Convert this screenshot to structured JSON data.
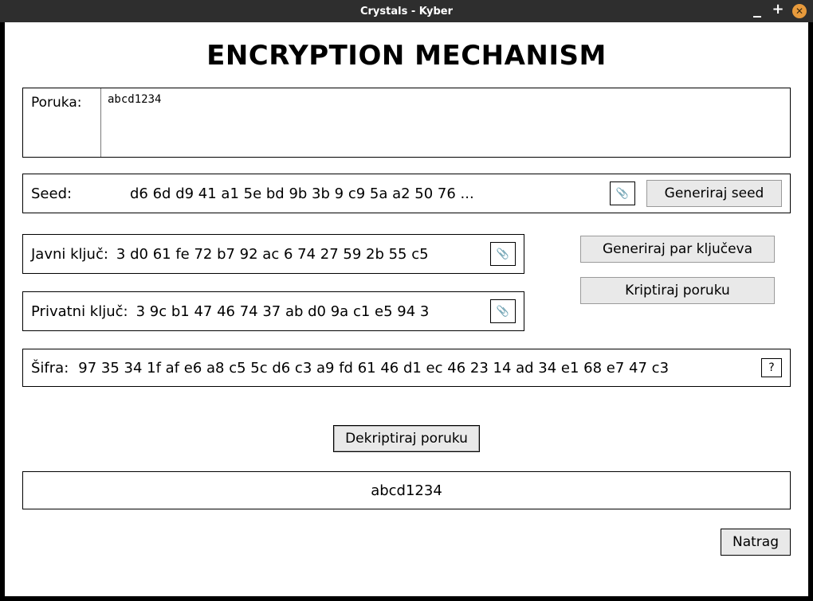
{
  "window": {
    "title": "Crystals - Kyber"
  },
  "page": {
    "heading": "ENCRYPTION MECHANISM"
  },
  "message": {
    "label": "Poruka:",
    "value": "abcd1234"
  },
  "seed": {
    "label": "Seed:",
    "value": "d6 6d d9 41 a1 5e bd 9b 3b 9 c9 5a a2 50 76 ...",
    "generate_label": "Generiraj seed"
  },
  "public_key": {
    "label": "Javni ključ:",
    "value": "3 d0 61 fe 72 b7 92 ac 6 74 27 59 2b 55 c5"
  },
  "private_key": {
    "label": "Privatni ključ:",
    "value": "3 9c b1 47 46 74 37 ab d0 9a c1 e5 94 3"
  },
  "key_actions": {
    "generate_pair_label": "Generiraj par ključeva",
    "encrypt_label": "Kriptiraj poruku"
  },
  "cipher": {
    "label": "Šifra:",
    "value": "97 35 34 1f af e6 a8 c5 5c d6 c3 a9 fd 61 46 d1 ec 46 23 14 ad 34 e1 68 e7 47 c3",
    "help_label": "?"
  },
  "decrypt": {
    "label": "Dekriptiraj poruku"
  },
  "result": {
    "value": "abcd1234"
  },
  "back": {
    "label": "Natrag"
  },
  "icons": {
    "clip": "📎"
  }
}
